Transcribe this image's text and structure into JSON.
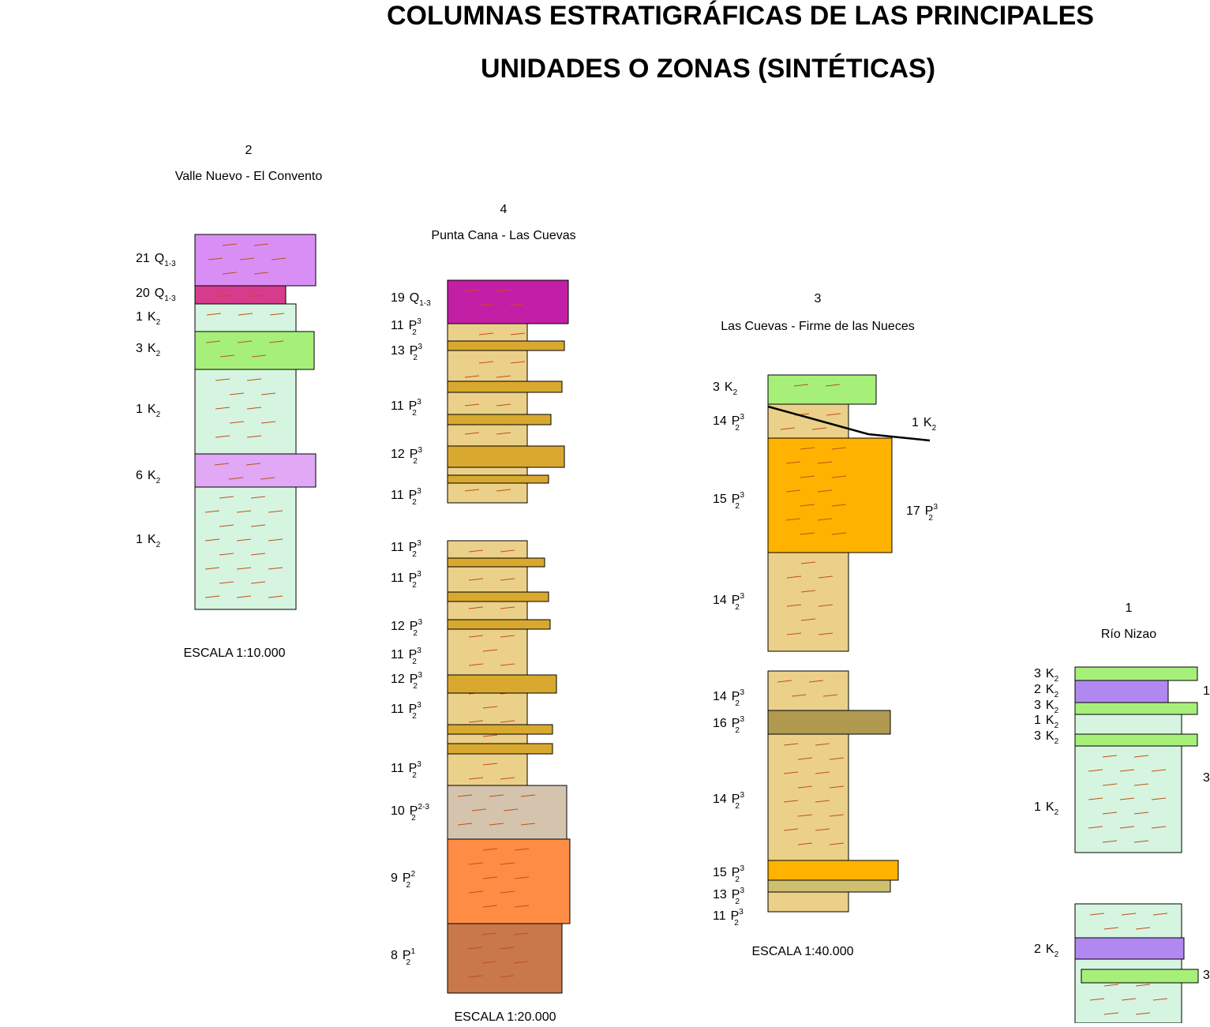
{
  "title": {
    "line1": "COLUMNAS ESTRATIGRÁFICAS DE LAS PRINCIPALES",
    "line2": "UNIDADES O ZONAS (SINTÉTICAS)"
  },
  "columns": [
    {
      "number": "2",
      "name": "Valle Nuevo - El Convento",
      "labels": [
        {
          "unit": "21",
          "symbol": "Q",
          "sub": "1-3"
        },
        {
          "unit": "20",
          "symbol": "Q",
          "sub": "1-3"
        },
        {
          "unit": "1",
          "symbol": "K",
          "sub": "2"
        },
        {
          "unit": "3",
          "symbol": "K",
          "sub": "2"
        },
        {
          "unit": "1",
          "symbol": "K",
          "sub": "2"
        },
        {
          "unit": "6",
          "symbol": "K",
          "sub": "2"
        },
        {
          "unit": "1",
          "symbol": "K",
          "sub": "2"
        }
      ],
      "side_labels": [],
      "scale": "ESCALA 1:10.000"
    },
    {
      "number": "4",
      "name": "Punta Cana - Las Cuevas",
      "labels": [
        {
          "unit": "19",
          "symbol": "Q",
          "sub": "1-3"
        },
        {
          "unit": "11",
          "symbol": "P",
          "sub": "2",
          "sup": "3"
        },
        {
          "unit": "13",
          "symbol": "P",
          "sub": "2",
          "sup": "3"
        },
        {
          "unit": "11",
          "symbol": "P",
          "sub": "2",
          "sup": "3"
        },
        {
          "unit": "12",
          "symbol": "P",
          "sub": "2",
          "sup": "3"
        },
        {
          "unit": "11",
          "symbol": "P",
          "sub": "2",
          "sup": "3"
        },
        {
          "unit": "11",
          "symbol": "P",
          "sub": "2",
          "sup": "3"
        },
        {
          "unit": "11",
          "symbol": "P",
          "sub": "2",
          "sup": "3"
        },
        {
          "unit": "12",
          "symbol": "P",
          "sub": "2",
          "sup": "3"
        },
        {
          "unit": "11",
          "symbol": "P",
          "sub": "2",
          "sup": "3"
        },
        {
          "unit": "12",
          "symbol": "P",
          "sub": "2",
          "sup": "3"
        },
        {
          "unit": "11",
          "symbol": "P",
          "sub": "2",
          "sup": "3"
        },
        {
          "unit": "11",
          "symbol": "P",
          "sub": "2",
          "sup": "3"
        },
        {
          "unit": "10",
          "symbol": "P",
          "sub": "2",
          "sup": "2-3"
        },
        {
          "unit": "9",
          "symbol": "P",
          "sub": "2",
          "sup": "2"
        },
        {
          "unit": "8",
          "symbol": "P",
          "sub": "2",
          "sup": "1"
        }
      ],
      "side_labels": [],
      "scale": "ESCALA 1:20.000"
    },
    {
      "number": "3",
      "name": "Las Cuevas - Firme de las Nueces",
      "labels": [
        {
          "unit": "3",
          "symbol": "K",
          "sub": "2"
        },
        {
          "unit": "14",
          "symbol": "P",
          "sub": "2",
          "sup": "3"
        },
        {
          "unit": "15",
          "symbol": "P",
          "sub": "2",
          "sup": "3"
        },
        {
          "unit": "14",
          "symbol": "P",
          "sub": "2",
          "sup": "3"
        },
        {
          "unit": "14",
          "symbol": "P",
          "sub": "2",
          "sup": "3"
        },
        {
          "unit": "16",
          "symbol": "P",
          "sub": "2",
          "sup": "3"
        },
        {
          "unit": "14",
          "symbol": "P",
          "sub": "2",
          "sup": "3"
        },
        {
          "unit": "15",
          "symbol": "P",
          "sub": "2",
          "sup": "3"
        },
        {
          "unit": "13",
          "symbol": "P",
          "sub": "2",
          "sup": "3"
        },
        {
          "unit": "11",
          "symbol": "P",
          "sub": "2",
          "sup": "3"
        }
      ],
      "side_labels": [
        {
          "unit": "1",
          "symbol": "K",
          "sub": "2"
        },
        {
          "unit": "17",
          "symbol": "P",
          "sub": "2",
          "sup": "3"
        }
      ],
      "scale": "ESCALA 1:40.000"
    },
    {
      "number": "1",
      "name": "Río Nizao",
      "labels": [
        {
          "unit": "3",
          "symbol": "K",
          "sub": "2"
        },
        {
          "unit": "2",
          "symbol": "K",
          "sub": "2"
        },
        {
          "unit": "3",
          "symbol": "K",
          "sub": "2"
        },
        {
          "unit": "1",
          "symbol": "K",
          "sub": "2"
        },
        {
          "unit": "3",
          "symbol": "K",
          "sub": "2"
        },
        {
          "unit": "1",
          "symbol": "K",
          "sub": "2"
        },
        {
          "unit": "2",
          "symbol": "K",
          "sub": "2"
        }
      ],
      "side_labels": [
        {
          "unit": "1"
        },
        {
          "unit": "3"
        },
        {
          "unit": "3"
        }
      ]
    }
  ]
}
